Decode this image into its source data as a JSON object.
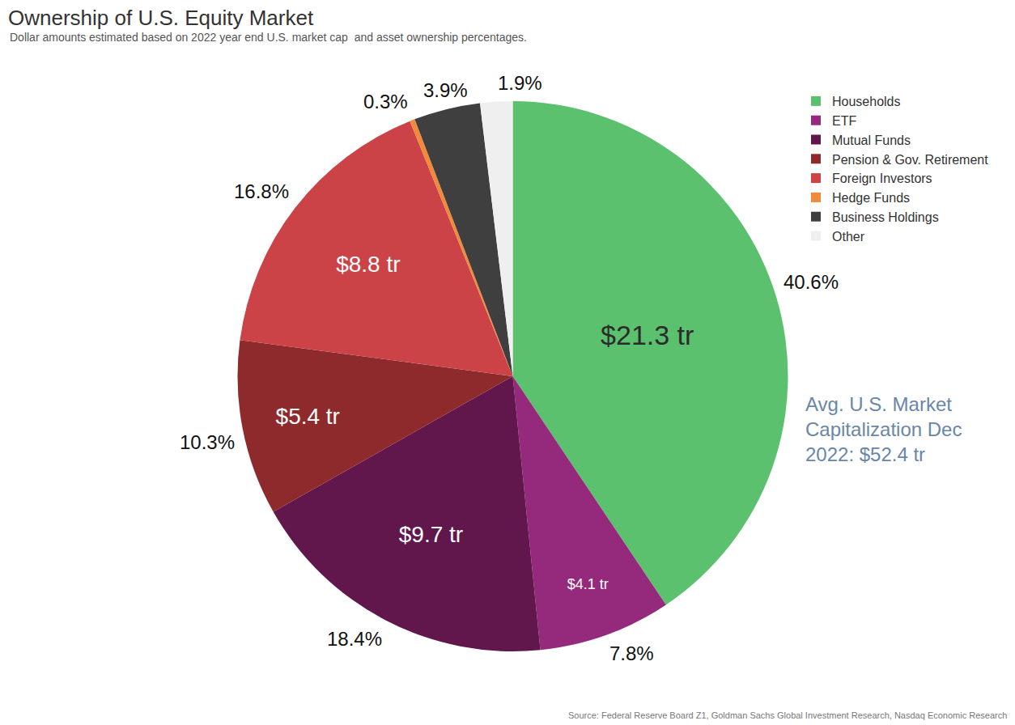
{
  "chart_data": {
    "type": "pie",
    "title": "Ownership of U.S. Equity Market",
    "subtitle": "Dollar amounts estimated based on 2022 year end U.S. market cap  and asset ownership percentages.",
    "categories": [
      "Households",
      "ETF",
      "Mutual Funds",
      "Pension & Gov. Retirement",
      "Foreign Investors",
      "Hedge Funds",
      "Business Holdings",
      "Other"
    ],
    "values": [
      40.6,
      7.8,
      18.4,
      10.3,
      16.8,
      0.3,
      3.9,
      1.9
    ],
    "value_labels": [
      "40.6%",
      "7.8%",
      "18.4%",
      "10.3%",
      "16.8%",
      "0.3%",
      "3.9%",
      "1.9%"
    ],
    "amounts": [
      21.3,
      4.1,
      9.7,
      5.4,
      8.8,
      null,
      null,
      null
    ],
    "amount_labels": [
      "$21.3 tr",
      "$4.1 tr",
      "$9.7 tr",
      "$5.4 tr",
      "$8.8 tr",
      null,
      null,
      null
    ],
    "colors": [
      "#5cc16f",
      "#952a7d",
      "#62174c",
      "#8e2a2c",
      "#cb4346",
      "#f28a3c",
      "#3f3f3f",
      "#efefef"
    ],
    "data_labels": true,
    "legend": "top right",
    "annotations": [
      {
        "lines": [
          "Avg. U.S. Market",
          "Capitalization Dec",
          "2022: $52.4 tr"
        ]
      }
    ],
    "source": "Source: Federal Reserve Board Z1, Goldman Sachs Global Investment Research, Nasdaq Economic Research"
  }
}
